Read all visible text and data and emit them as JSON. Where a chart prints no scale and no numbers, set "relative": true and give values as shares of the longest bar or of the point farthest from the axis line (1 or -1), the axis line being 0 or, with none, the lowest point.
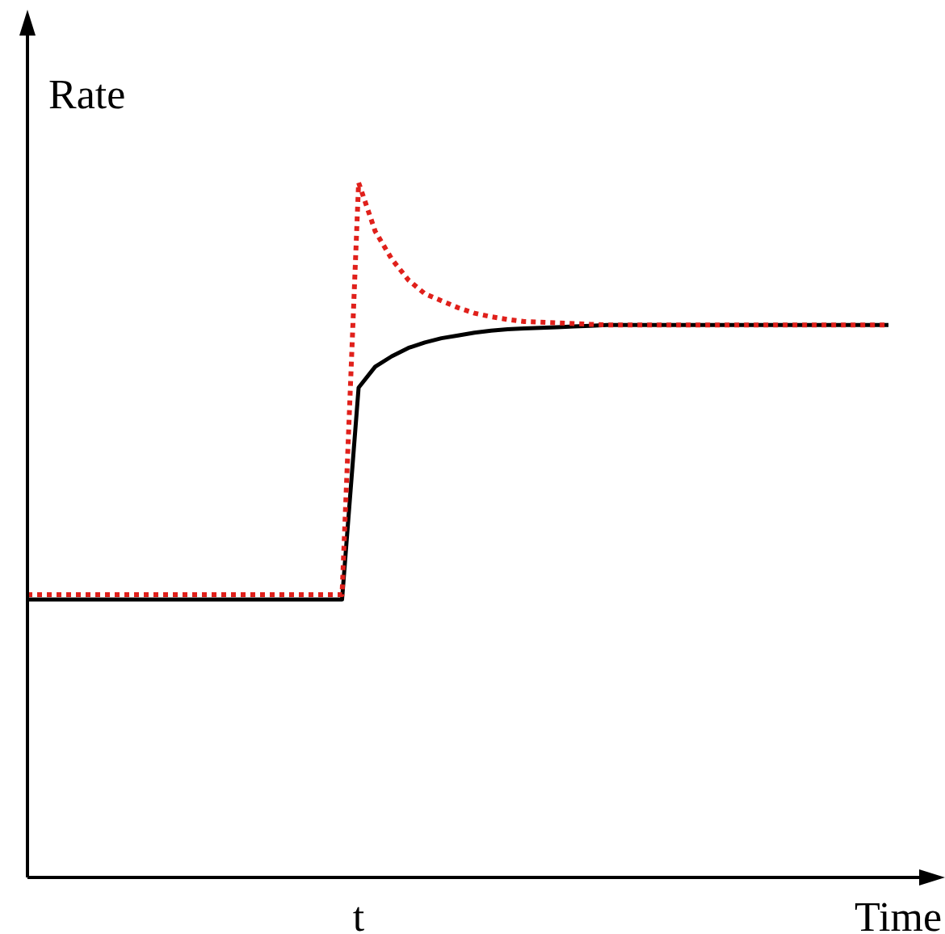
{
  "chart_data": {
    "type": "line",
    "relative": true,
    "xlabel": "Time",
    "ylabel": "Rate",
    "categories": [
      null,
      null,
      null,
      null,
      null,
      null,
      null,
      null,
      null,
      null,
      null,
      null,
      null,
      null,
      null,
      null,
      null,
      null,
      null,
      null,
      null,
      null,
      null,
      null,
      null,
      null,
      null,
      null,
      null,
      null,
      null,
      null,
      null,
      null,
      null,
      null,
      null,
      null,
      null,
      null,
      null,
      null,
      null,
      null,
      null,
      null,
      null,
      null,
      null,
      null,
      null,
      null,
      null
    ],
    "annotations": [
      "t"
    ],
    "series": [
      {
        "color": "#000000",
        "line_style": "solid",
        "values": [
          0.4,
          0.4,
          0.4,
          0.4,
          0.4,
          0.4,
          0.4,
          0.4,
          0.4,
          0.4,
          0.4,
          0.4,
          0.4,
          0.4,
          0.4,
          0.4,
          0.4,
          0.4,
          0.4,
          0.4,
          0.705,
          0.735,
          0.75,
          0.762,
          0.77,
          0.776,
          0.78,
          0.784,
          0.787,
          0.789,
          0.79,
          0.791,
          0.792,
          0.793,
          0.794,
          0.795,
          0.795,
          0.795,
          0.795,
          0.795,
          0.795,
          0.795,
          0.795,
          0.795,
          0.795,
          0.795,
          0.795,
          0.795,
          0.795,
          0.795,
          0.795,
          0.795,
          0.795
        ]
      },
      {
        "color": "#e0201b",
        "line_style": "dotted",
        "values": [
          0.407,
          0.407,
          0.407,
          0.407,
          0.407,
          0.407,
          0.407,
          0.407,
          0.407,
          0.407,
          0.407,
          0.407,
          0.407,
          0.407,
          0.407,
          0.407,
          0.407,
          0.407,
          0.407,
          0.407,
          1.0,
          0.93,
          0.89,
          0.86,
          0.84,
          0.83,
          0.82,
          0.812,
          0.807,
          0.803,
          0.8,
          0.799,
          0.798,
          0.797,
          0.796,
          0.795,
          0.795,
          0.795,
          0.795,
          0.795,
          0.795,
          0.795,
          0.795,
          0.795,
          0.795,
          0.795,
          0.795,
          0.795,
          0.795,
          0.795,
          0.795,
          0.795,
          0.795
        ]
      }
    ]
  }
}
